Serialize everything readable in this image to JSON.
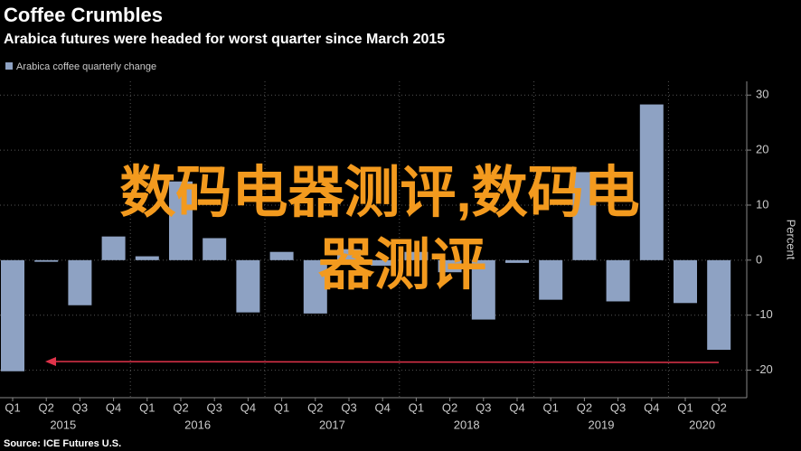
{
  "chart_data": {
    "type": "bar",
    "title": "Coffee Crumbles",
    "subtitle": "Arabica futures were headed for worst quarter since March 2015",
    "legend": "Arabica coffee quarterly change",
    "y_axis_label": "Percent",
    "source": "Source: ICE Futures U.S.",
    "watermark": "数码电器测评,数码电器测评",
    "color": "#8ea2c3",
    "categories": [
      "Q1",
      "Q2",
      "Q3",
      "Q4",
      "Q1",
      "Q2",
      "Q3",
      "Q4",
      "Q1",
      "Q2",
      "Q3",
      "Q4",
      "Q1",
      "Q2",
      "Q3",
      "Q4",
      "Q1",
      "Q2",
      "Q3",
      "Q4",
      "Q1",
      "Q2"
    ],
    "years": [
      "2015",
      "2016",
      "2017",
      "2018",
      "2019",
      "2020"
    ],
    "values": [
      -20.2,
      -0.3,
      -8.2,
      4.3,
      0.7,
      14.3,
      4,
      -9.5,
      1.5,
      -9.7,
      2,
      -1,
      1.5,
      -2.2,
      -10.8,
      -0.5,
      -7.2,
      16,
      -7.5,
      28.3,
      -7.8,
      -16.3
    ],
    "ylim": [
      -25,
      32.5
    ],
    "yticks": [
      -20,
      -10,
      0,
      10,
      20,
      30
    ],
    "grid": true
  }
}
